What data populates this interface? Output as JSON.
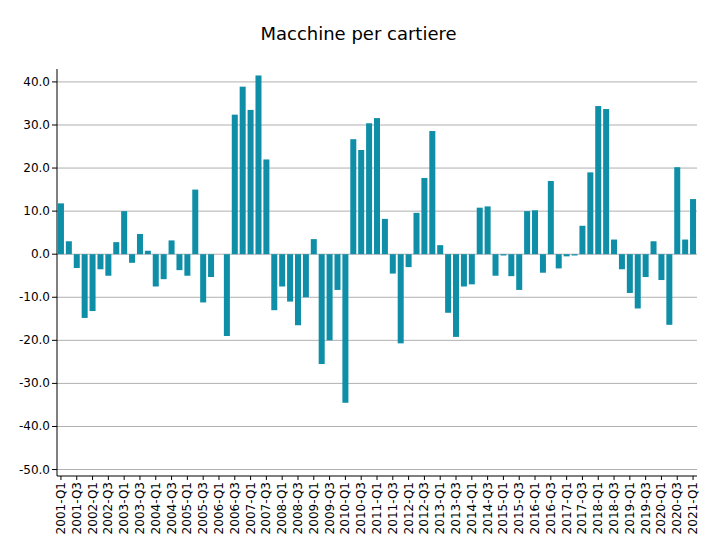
{
  "chart_data": {
    "type": "bar",
    "title": "Macchine per cartiere",
    "categories": [
      "2001-Q1",
      null,
      "2001-Q3",
      null,
      "2002-Q1",
      null,
      "2002-Q3",
      null,
      "2003-Q1",
      null,
      "2003-Q3",
      null,
      "2004-Q1",
      null,
      "2004-Q3",
      null,
      "2005-Q1",
      null,
      "2005-Q3",
      null,
      "2006-Q1",
      null,
      "2006-Q3",
      null,
      "2007-Q1",
      null,
      "2007-Q3",
      null,
      "2008-Q1",
      null,
      "2008-Q3",
      null,
      "2009-Q1",
      null,
      "2009-Q3",
      null,
      "2010-Q1",
      null,
      "2010-Q3",
      null,
      "2011-Q1",
      null,
      "2011-Q3",
      null,
      "2012-Q1",
      null,
      "2012-Q3",
      null,
      "2013-Q1",
      null,
      "2013-Q3",
      null,
      "2014-Q1",
      null,
      "2014-Q3",
      null,
      "2015-Q1",
      null,
      "2015-Q3",
      null,
      "2016-Q1",
      null,
      "2016-Q3",
      null,
      "2017-Q1",
      null,
      "2017-Q3",
      null,
      "2018-Q1",
      null,
      "2018-Q3",
      null,
      "2019-Q1",
      null,
      "2019-Q3",
      null,
      "2020-Q1",
      null,
      "2020-Q3",
      null,
      "2021-Q1"
    ],
    "values": [
      11.8,
      3.0,
      -3.2,
      -14.8,
      -13.2,
      -3.5,
      -5.0,
      2.8,
      10.0,
      -2.0,
      4.7,
      0.8,
      -7.5,
      -5.8,
      3.2,
      -3.7,
      -5.0,
      15.0,
      -11.2,
      -5.3,
      0,
      -19.0,
      32.4,
      38.9,
      33.5,
      41.5,
      22.0,
      -13.0,
      -7.5,
      -11.0,
      -16.5,
      -10.0,
      3.5,
      -25.5,
      -20.0,
      -8.3,
      -34.5,
      26.7,
      24.2,
      30.4,
      31.6,
      8.2,
      -4.5,
      -20.7,
      -3.0,
      9.6,
      17.7,
      28.6,
      2.1,
      -13.6,
      -19.2,
      -7.5,
      -7.0,
      10.8,
      11.1,
      -5.0,
      -0.3,
      -5.1,
      -8.3,
      10.0,
      10.2,
      -4.3,
      17.0,
      -3.3,
      -0.5,
      -0.3,
      6.6,
      19.0,
      34.4,
      33.7,
      3.4,
      -3.5,
      -9.0,
      -12.6,
      -5.3,
      3.0,
      -6.0,
      -16.4,
      20.2,
      3.4,
      12.8
    ],
    "color": "#0f8ea8",
    "ylim": [
      -51.5,
      43
    ],
    "yticks": [
      {
        "value": -50,
        "label": "-50.0"
      },
      {
        "value": -40,
        "label": "-40.0"
      },
      {
        "value": -30,
        "label": "-30.0"
      },
      {
        "value": -20,
        "label": "-20.0"
      },
      {
        "value": -10,
        "label": "-10.0"
      },
      {
        "value": 0,
        "label": "0.0"
      },
      {
        "value": 10,
        "label": "10.0"
      },
      {
        "value": 20,
        "label": "20.0"
      },
      {
        "value": 30,
        "label": "30.0"
      },
      {
        "value": 40,
        "label": "40.0"
      }
    ],
    "grid": true
  }
}
